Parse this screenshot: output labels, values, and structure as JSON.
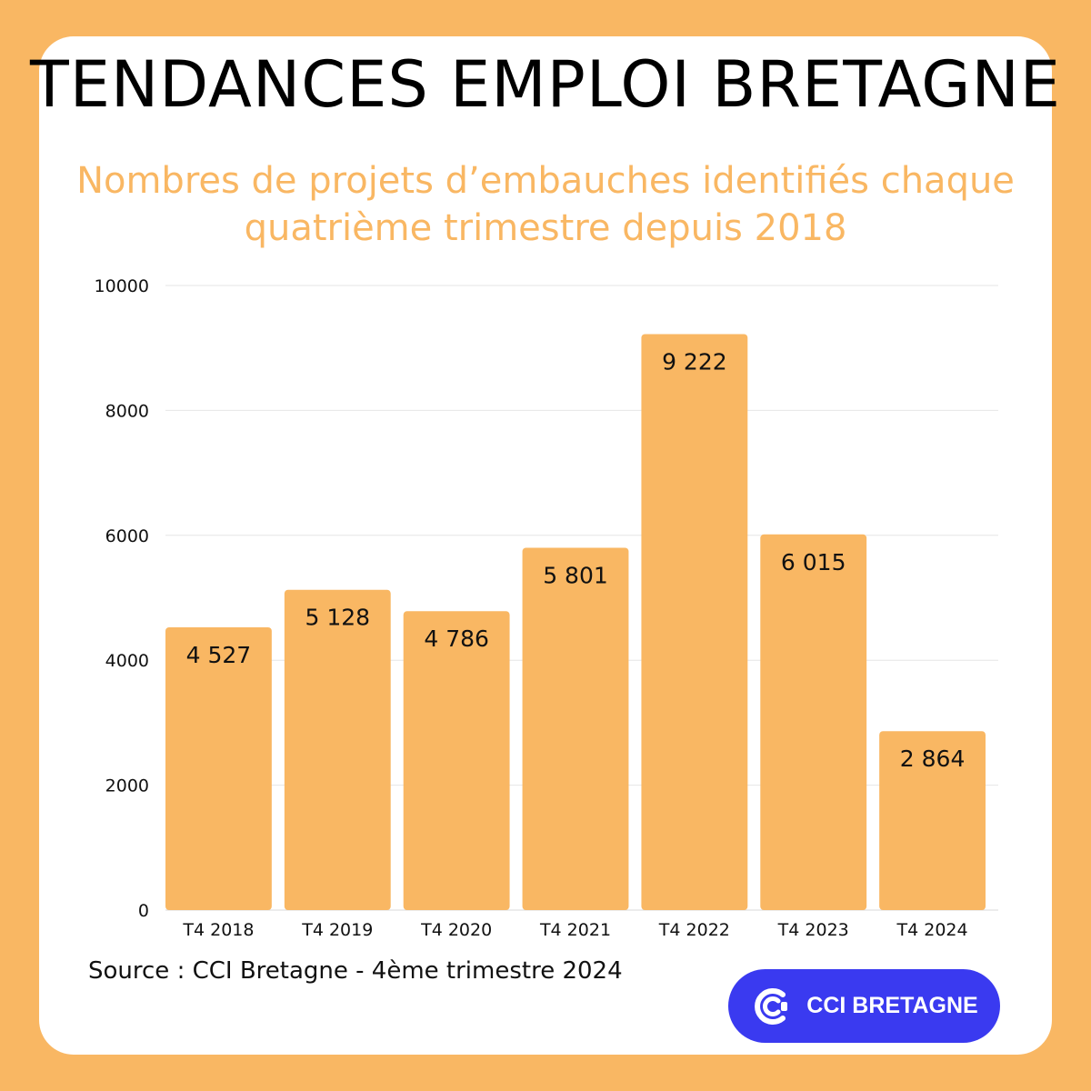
{
  "colors": {
    "background": "#f9b763",
    "bar": "#f9b763",
    "logo_bg": "#3a3af0",
    "grid": "#e6e6e6"
  },
  "header": {
    "title": "TENDANCES EMPLOI BRETAGNE",
    "subtitle_line1": "Nombres de projets d’embauches identifiés chaque",
    "subtitle_line2": "quatrième trimestre depuis 2018"
  },
  "footer": {
    "source": "Source : CCI Bretagne - 4ème trimestre 2024",
    "logo_text": "CCI BRETAGNE",
    "logo_icon": "cci-logo-icon"
  },
  "chart_data": {
    "type": "bar",
    "title": "Nombres de projets d’embauches identifiés chaque quatrième trimestre depuis 2018",
    "categories": [
      "T4 2018",
      "T4 2019",
      "T4 2020",
      "T4 2021",
      "T4 2022",
      "T4 2023",
      "T4 2024"
    ],
    "values": [
      4527,
      5128,
      4786,
      5801,
      9222,
      6015,
      2864
    ],
    "data_labels": [
      "4 527",
      "5 128",
      "4 786",
      "5 801",
      "9 222",
      "6 015",
      "2 864"
    ],
    "yticks": [
      0,
      2000,
      4000,
      6000,
      8000,
      10000
    ],
    "ylim": [
      0,
      10000
    ],
    "xlabel": "",
    "ylabel": "",
    "grid": true
  }
}
